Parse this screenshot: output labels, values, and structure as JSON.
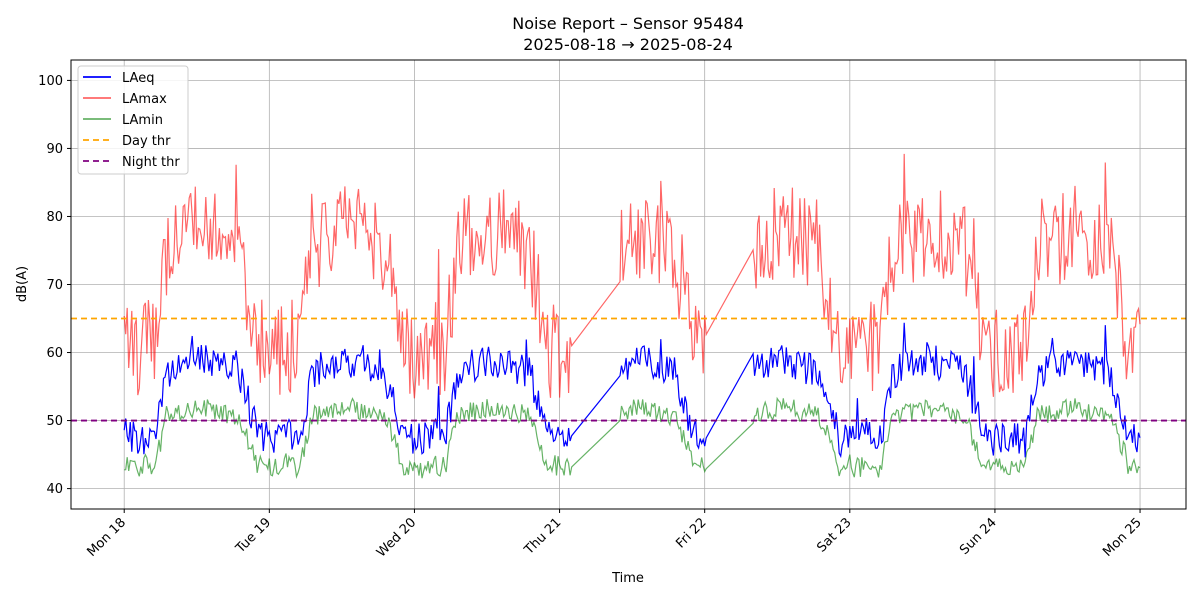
{
  "chart_data": {
    "type": "line",
    "title": "Noise Report – Sensor 95484",
    "subtitle": "2025-08-18 → 2025-08-24",
    "xlabel": "Time",
    "ylabel": "dB(A)",
    "ylim": [
      37,
      103
    ],
    "y_ticks": [
      40,
      50,
      60,
      70,
      80,
      90,
      100
    ],
    "xlim": [
      "2025-08-17T15:12",
      "2025-08-25T07:36"
    ],
    "x_ticks": [
      {
        "label": "Mon 18",
        "date": "2025-08-18"
      },
      {
        "label": "Tue 19",
        "date": "2025-08-19"
      },
      {
        "label": "Wed 20",
        "date": "2025-08-20"
      },
      {
        "label": "Thu 21",
        "date": "2025-08-21"
      },
      {
        "label": "Fri 22",
        "date": "2025-08-22"
      },
      {
        "label": "Sat 23",
        "date": "2025-08-23"
      },
      {
        "label": "Sun 24",
        "date": "2025-08-24"
      },
      {
        "label": "Mon 25",
        "date": "2025-08-25"
      }
    ],
    "grid": true,
    "legend_position": "top-left",
    "series": [
      {
        "name": "LAeq",
        "color": "#0000ff",
        "style": "solid"
      },
      {
        "name": "LAmax",
        "color": "#ff0000",
        "style": "solid",
        "alpha": 0.6
      },
      {
        "name": "LAmin",
        "color": "#008000",
        "style": "solid",
        "alpha": 0.6
      },
      {
        "name": "Day thr",
        "color": "#ffa500",
        "style": "dashed",
        "value": 65
      },
      {
        "name": "Night thr",
        "color": "#800080",
        "style": "dashed",
        "value": 50
      }
    ],
    "data_segments": [
      {
        "start": "2025-08-18T00:00",
        "end": "2025-08-21T02:00"
      },
      {
        "start": "2025-08-21T10:00",
        "end": "2025-08-22T00:20"
      },
      {
        "start": "2025-08-22T08:00",
        "end": "2025-08-25T00:00"
      }
    ],
    "typical_levels": {
      "night": {
        "LAmin": 43,
        "LAeq": 47,
        "LAmax": 60
      },
      "day": {
        "LAmin": 52,
        "LAeq": 59,
        "LAmax": 78
      }
    }
  }
}
